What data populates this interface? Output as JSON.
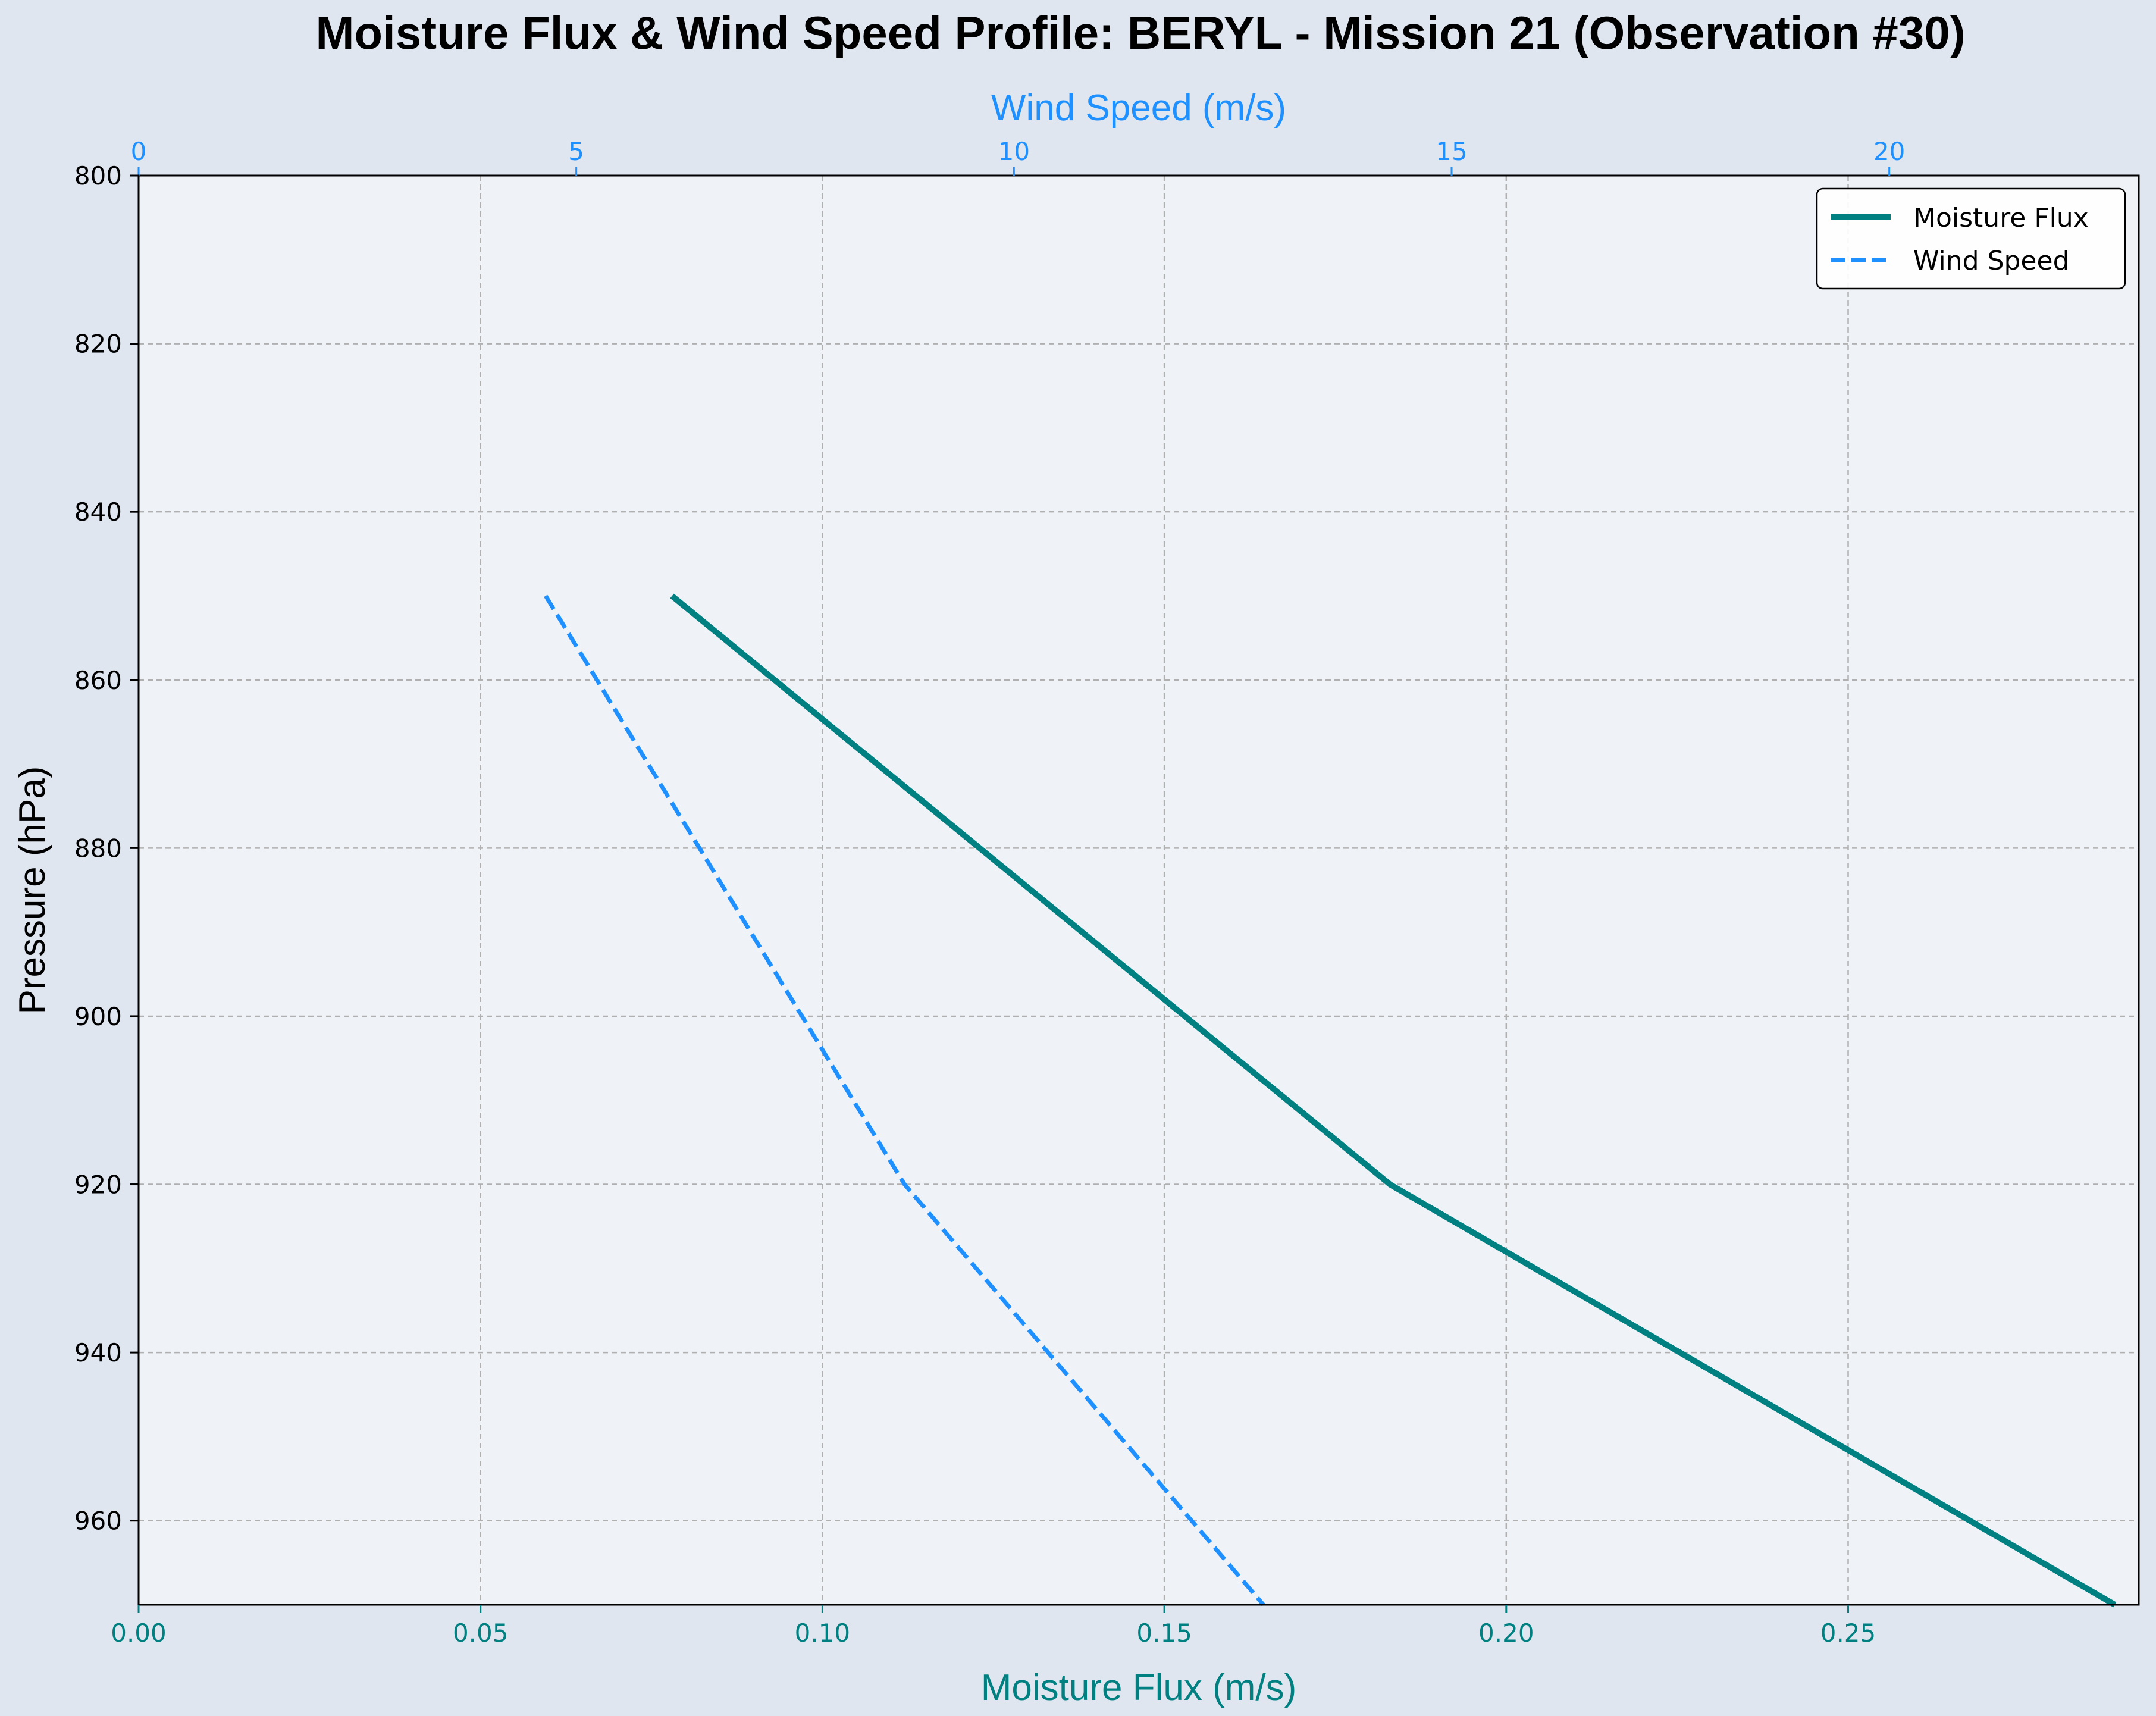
{
  "chart_data": {
    "type": "line",
    "title": "Moisture Flux & Wind Speed Profile: BERYL - Mission 21 (Observation #30)",
    "xlabel": "Moisture Flux (m/s)",
    "x2label": "Wind Speed (m/s)",
    "ylabel": "Pressure (hPa)",
    "xlim": [
      0,
      0.2925
    ],
    "x2lim": [
      0,
      22.85
    ],
    "ylim": [
      970,
      800
    ],
    "y_inverted": true,
    "grid": true,
    "legend_position": "top-right",
    "xticks": [
      "0.00",
      "0.05",
      "0.10",
      "0.15",
      "0.20",
      "0.25"
    ],
    "x2ticks": [
      "0",
      "5",
      "10",
      "15",
      "20"
    ],
    "yticks": [
      "800",
      "820",
      "840",
      "860",
      "880",
      "900",
      "920",
      "940",
      "960"
    ],
    "colors": {
      "moisture": "#008080",
      "wind": "#1e90ff",
      "plot_bg": "#eff3f8",
      "grid": "#b0b0b0"
    },
    "series": [
      {
        "name": "Moisture Flux",
        "axis": "bottom",
        "style": "solid",
        "x": [
          0.078,
          0.183,
          0.289
        ],
        "y": [
          850,
          920,
          970
        ]
      },
      {
        "name": "Wind Speed",
        "axis": "top",
        "style": "dashed",
        "x": [
          4.65,
          8.75,
          12.85
        ],
        "y": [
          850,
          920,
          970
        ]
      }
    ]
  }
}
